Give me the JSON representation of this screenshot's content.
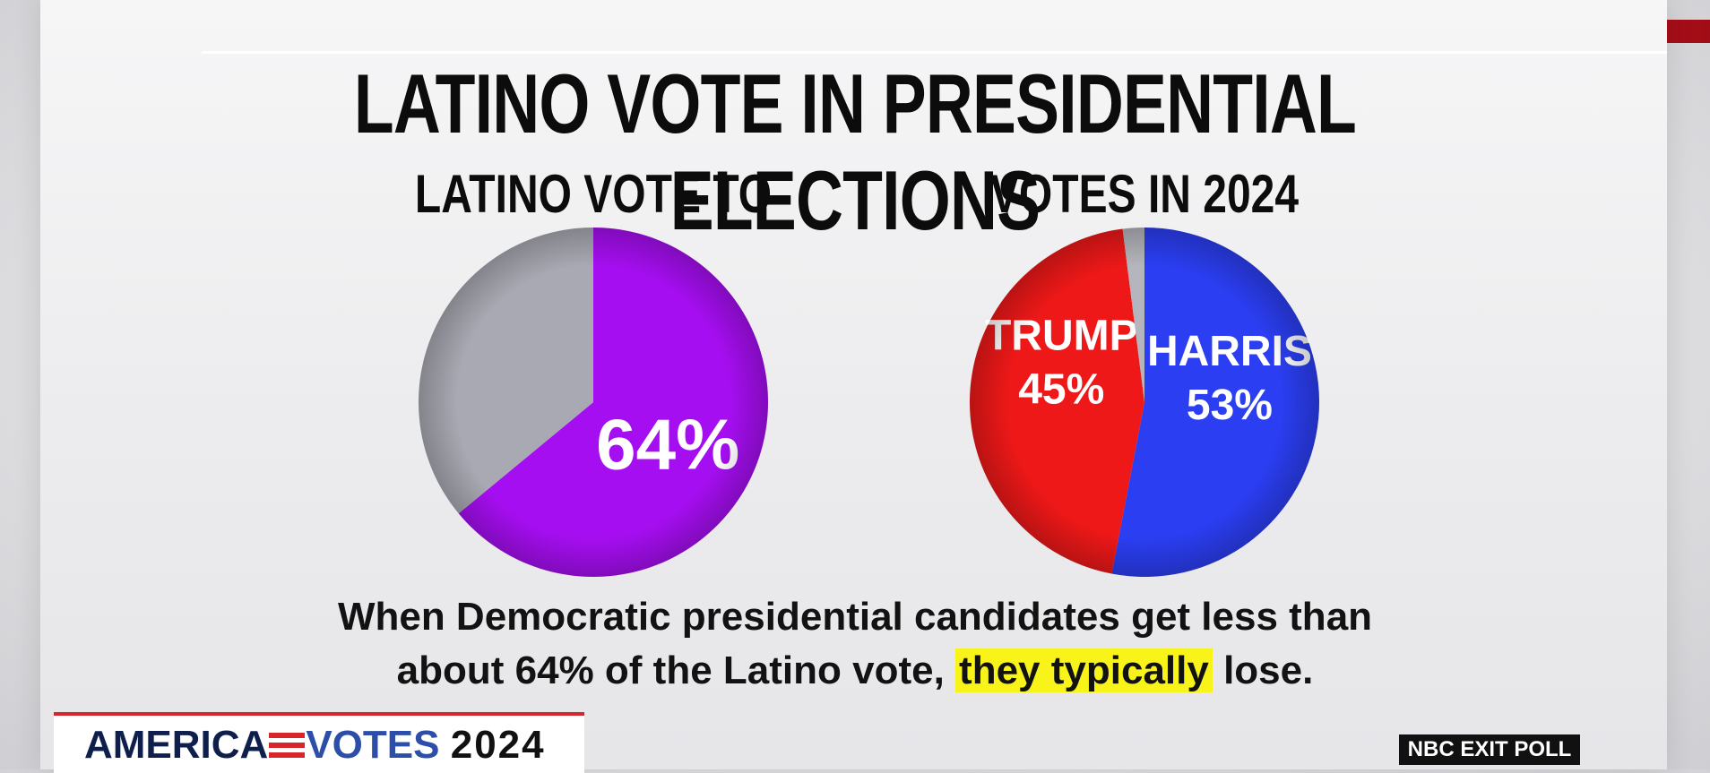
{
  "title": "LATINO VOTE IN PRESIDENTIAL ELECTIONS",
  "chart_data": [
    {
      "type": "pie",
      "title": "LATINO VOTE TO WIN",
      "slices": [
        {
          "label": "",
          "value": 64,
          "display": "64%",
          "color": "#a50ef0"
        },
        {
          "label": "",
          "value": 36,
          "display": "",
          "color": "#a9a9b3"
        }
      ]
    },
    {
      "type": "pie",
      "title": "VOTES IN 2024",
      "slices": [
        {
          "label": "HARRIS",
          "value": 53,
          "display": "53%",
          "color": "#2b3ef2"
        },
        {
          "label": "TRUMP",
          "value": 45,
          "display": "45%",
          "color": "#ee1818"
        },
        {
          "label": "",
          "value": 2,
          "display": "",
          "color": "#b5b5bd"
        }
      ]
    }
  ],
  "caption": {
    "line1": "When Democratic presidential candidates get less than",
    "line2_start": "about 64% of the Latino vote,",
    "line2_highlight": "they typically",
    "line2_end": "lose."
  },
  "logo": {
    "part1": "AMERICA",
    "part2": "VOTES",
    "part3": "2024"
  },
  "source_tag": "NBC EXIT POLL",
  "colors": {
    "highlight": "#f8f41a",
    "accent_red": "#d6262c"
  }
}
